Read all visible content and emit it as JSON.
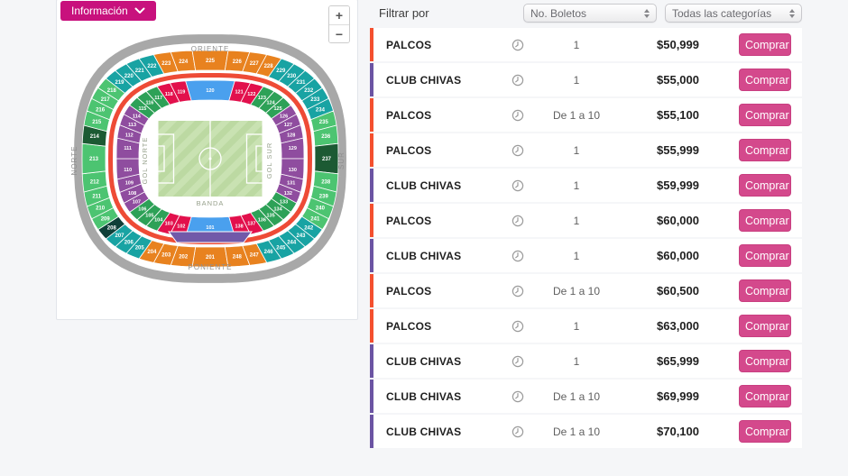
{
  "map_panel": {
    "info_button": {
      "label": "Información"
    },
    "zoom_in": "+",
    "zoom_out": "−",
    "compass": {
      "top": "ORIENTE",
      "bottom": "PONIENTE",
      "left": "NORTE",
      "right": "SUR"
    },
    "field": {
      "left_label": "GOL NORTE",
      "right_label": "GOL SUR",
      "bottom_label": "BANDA"
    },
    "palette": {
      "orange": "#e8821f",
      "teal": "#18a3a3",
      "green": "#4cc471",
      "dgreen": "#1c5a33",
      "ddark": "#0f3f38",
      "igreen": "#2da157",
      "red": "#e2104c",
      "blue": "#4aa0ee",
      "purple": "#8f4d9f",
      "ring_red": "#ee4b36",
      "bowl_gray": "#a8a8a8",
      "stage_band": "#7159a9",
      "field_green": "#bcd9a2",
      "field_green_light": "#c9e2b2"
    },
    "outer_sections": [
      {
        "n": "201",
        "c": "orange"
      },
      {
        "n": "202",
        "c": "orange"
      },
      {
        "n": "203",
        "c": "orange"
      },
      {
        "n": "204",
        "c": "orange"
      },
      {
        "n": "205",
        "c": "teal"
      },
      {
        "n": "206",
        "c": "teal"
      },
      {
        "n": "207",
        "c": "teal"
      },
      {
        "n": "208",
        "c": "ddark"
      },
      {
        "n": "209",
        "c": "green"
      },
      {
        "n": "210",
        "c": "green"
      },
      {
        "n": "211",
        "c": "green"
      },
      {
        "n": "212",
        "c": "green"
      },
      {
        "n": "213",
        "c": "green"
      },
      {
        "n": "214",
        "c": "dgreen"
      },
      {
        "n": "215",
        "c": "green"
      },
      {
        "n": "216",
        "c": "green"
      },
      {
        "n": "217",
        "c": "green"
      },
      {
        "n": "218",
        "c": "green"
      },
      {
        "n": "219",
        "c": "teal"
      },
      {
        "n": "220",
        "c": "teal"
      },
      {
        "n": "221",
        "c": "teal"
      },
      {
        "n": "222",
        "c": "teal"
      },
      {
        "n": "223",
        "c": "orange"
      },
      {
        "n": "224",
        "c": "orange"
      },
      {
        "n": "225",
        "c": "orange"
      },
      {
        "n": "226",
        "c": "orange"
      },
      {
        "n": "227",
        "c": "orange"
      },
      {
        "n": "228",
        "c": "orange"
      },
      {
        "n": "229",
        "c": "teal"
      },
      {
        "n": "230",
        "c": "teal"
      },
      {
        "n": "231",
        "c": "teal"
      },
      {
        "n": "232",
        "c": "teal"
      },
      {
        "n": "233",
        "c": "teal"
      },
      {
        "n": "234",
        "c": "teal"
      },
      {
        "n": "235",
        "c": "green"
      },
      {
        "n": "236",
        "c": "green"
      },
      {
        "n": "237",
        "c": "dgreen"
      },
      {
        "n": "238",
        "c": "green"
      },
      {
        "n": "239",
        "c": "green"
      },
      {
        "n": "240",
        "c": "green"
      },
      {
        "n": "241",
        "c": "green"
      },
      {
        "n": "242",
        "c": "teal"
      },
      {
        "n": "243",
        "c": "teal"
      },
      {
        "n": "244",
        "c": "teal"
      },
      {
        "n": "245",
        "c": "teal"
      },
      {
        "n": "246",
        "c": "teal"
      },
      {
        "n": "247",
        "c": "orange"
      },
      {
        "n": "248",
        "c": "orange"
      }
    ],
    "inner_sections": [
      {
        "n": "101",
        "c": "blue",
        "w": 2
      },
      {
        "n": "102",
        "c": "red"
      },
      {
        "n": "103",
        "c": "red"
      },
      {
        "n": "104",
        "c": "igreen"
      },
      {
        "n": "105",
        "c": "igreen"
      },
      {
        "n": "106",
        "c": "igreen"
      },
      {
        "n": "107",
        "c": "purple"
      },
      {
        "n": "108",
        "c": "purple"
      },
      {
        "n": "109",
        "c": "purple"
      },
      {
        "n": "110",
        "c": "purple"
      },
      {
        "n": "111",
        "c": "purple"
      },
      {
        "n": "112",
        "c": "purple"
      },
      {
        "n": "113",
        "c": "purple"
      },
      {
        "n": "114",
        "c": "purple"
      },
      {
        "n": "115",
        "c": "igreen"
      },
      {
        "n": "116",
        "c": "igreen"
      },
      {
        "n": "117",
        "c": "igreen"
      },
      {
        "n": "118",
        "c": "red"
      },
      {
        "n": "119",
        "c": "red"
      },
      {
        "n": "120",
        "c": "blue",
        "w": 2
      },
      {
        "n": "121",
        "c": "red"
      },
      {
        "n": "122",
        "c": "red"
      },
      {
        "n": "123",
        "c": "igreen"
      },
      {
        "n": "124",
        "c": "igreen"
      },
      {
        "n": "125",
        "c": "igreen"
      },
      {
        "n": "126",
        "c": "purple"
      },
      {
        "n": "127",
        "c": "purple"
      },
      {
        "n": "128",
        "c": "purple"
      },
      {
        "n": "129",
        "c": "purple"
      },
      {
        "n": "130",
        "c": "purple"
      },
      {
        "n": "131",
        "c": "purple"
      },
      {
        "n": "132",
        "c": "purple"
      },
      {
        "n": "133",
        "c": "igreen"
      },
      {
        "n": "134",
        "c": "igreen"
      },
      {
        "n": "135",
        "c": "igreen"
      },
      {
        "n": "136",
        "c": "igreen"
      },
      {
        "n": "137",
        "c": "red"
      },
      {
        "n": "138",
        "c": "red"
      }
    ]
  },
  "filters": {
    "label": "Filtrar por",
    "ticket_select": "No. Boletos",
    "category_select": "Todas las categorías"
  },
  "icons": {
    "row_icon": "clock",
    "info_button_icon": "chevron-down",
    "select_icon": "up-down-arrows"
  },
  "tickets": {
    "buy_label": "Comprar",
    "category_colors": {
      "PALCOS": "#f4502e",
      "CLUB CHIVAS": "#6b54a3"
    },
    "rows": [
      {
        "category": "PALCOS",
        "qty": "1",
        "price": "$50,999"
      },
      {
        "category": "CLUB CHIVAS",
        "qty": "1",
        "price": "$55,000"
      },
      {
        "category": "PALCOS",
        "qty": "De 1 a 10",
        "price": "$55,100"
      },
      {
        "category": "PALCOS",
        "qty": "1",
        "price": "$55,999"
      },
      {
        "category": "CLUB CHIVAS",
        "qty": "1",
        "price": "$59,999"
      },
      {
        "category": "PALCOS",
        "qty": "1",
        "price": "$60,000"
      },
      {
        "category": "CLUB CHIVAS",
        "qty": "1",
        "price": "$60,000"
      },
      {
        "category": "PALCOS",
        "qty": "De 1 a 10",
        "price": "$60,500"
      },
      {
        "category": "PALCOS",
        "qty": "1",
        "price": "$63,000"
      },
      {
        "category": "CLUB CHIVAS",
        "qty": "1",
        "price": "$65,999"
      },
      {
        "category": "CLUB CHIVAS",
        "qty": "De 1 a 10",
        "price": "$69,999"
      },
      {
        "category": "CLUB CHIVAS",
        "qty": "De 1 a 10",
        "price": "$70,100"
      }
    ]
  }
}
